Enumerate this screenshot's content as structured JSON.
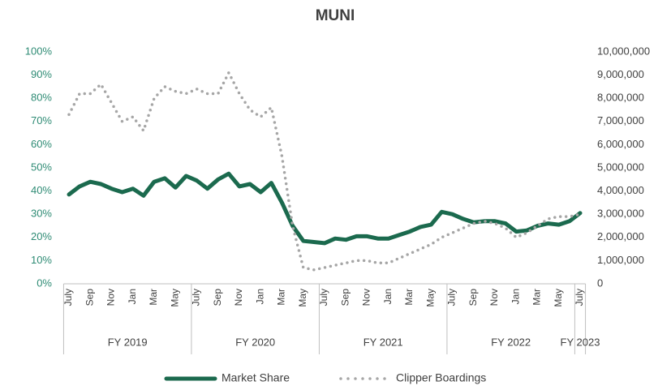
{
  "chart_data": {
    "type": "line",
    "title": "MUNI",
    "categories": [
      "July",
      null,
      "Sep",
      null,
      "Nov",
      null,
      "Jan",
      null,
      "Mar",
      null,
      "May",
      null,
      "July",
      null,
      "Sep",
      null,
      "Nov",
      null,
      "Jan",
      null,
      "Mar",
      null,
      "May",
      null,
      "July",
      null,
      "Sep",
      null,
      "Nov",
      null,
      "Jan",
      null,
      "Mar",
      null,
      "May",
      null,
      "July",
      null,
      "Sep",
      null,
      "Nov",
      null,
      "Jan",
      null,
      "Mar",
      null,
      "May",
      null,
      "July"
    ],
    "groups": [
      "FY 2019",
      "FY 2020",
      "FY 2021",
      "FY 2022",
      "FY 2023"
    ],
    "series": [
      {
        "name": "Market Share",
        "color": "#1b6a4e",
        "axis": "y",
        "values": [
          38.5,
          42,
          44,
          43,
          41,
          39.5,
          41,
          38,
          44,
          45.5,
          41.5,
          46.5,
          44.5,
          41,
          45,
          47.5,
          42,
          43,
          39.5,
          43.5,
          35,
          25,
          18.5,
          18,
          17.5,
          19.5,
          19,
          20.5,
          20.5,
          19.5,
          19.5,
          21,
          22.5,
          24.5,
          25.5,
          31,
          30,
          28,
          26.5,
          27,
          27,
          26,
          22.5,
          23,
          25,
          26,
          25.5,
          27,
          30.5
        ]
      },
      {
        "name": "Clipper Boardings",
        "color": "#a6a6a6",
        "axis": "y2",
        "values": [
          7300000,
          8200000,
          8200000,
          8600000,
          7800000,
          7000000,
          7200000,
          6600000,
          8000000,
          8500000,
          8300000,
          8200000,
          8400000,
          8200000,
          8200000,
          9100000,
          8200000,
          7500000,
          7200000,
          7600000,
          5500000,
          2500000,
          700000,
          600000,
          700000,
          800000,
          900000,
          1000000,
          1000000,
          900000,
          900000,
          1100000,
          1300000,
          1500000,
          1700000,
          2000000,
          2200000,
          2400000,
          2600000,
          2700000,
          2600000,
          2400000,
          2000000,
          2200000,
          2500000,
          2800000,
          2900000,
          2900000,
          3000000
        ]
      }
    ],
    "ylim": [
      0,
      100
    ],
    "yticks": [
      {
        "value": 0,
        "label": "0%"
      },
      {
        "value": 10,
        "label": "10%"
      },
      {
        "value": 20,
        "label": "20%"
      },
      {
        "value": 30,
        "label": "30%"
      },
      {
        "value": 40,
        "label": "40%"
      },
      {
        "value": 50,
        "label": "50%"
      },
      {
        "value": 60,
        "label": "60%"
      },
      {
        "value": 70,
        "label": "70%"
      },
      {
        "value": 80,
        "label": "80%"
      },
      {
        "value": 90,
        "label": "90%"
      },
      {
        "value": 100,
        "label": "100%"
      }
    ],
    "y2lim": [
      0,
      10000000
    ],
    "y2ticks": [
      0,
      {
        "value": 1000000,
        "label": "1,000,000"
      },
      {
        "value": 2000000,
        "label": "2,000,000"
      },
      {
        "value": 3000000,
        "label": "3,000,000"
      },
      {
        "value": 4000000,
        "label": "4,000,000"
      },
      {
        "value": 5000000,
        "label": "5,000,000"
      },
      {
        "value": 6000000,
        "label": "6,000,000"
      },
      {
        "value": 7000000,
        "label": "7,000,000"
      },
      {
        "value": 8000000,
        "label": "8,000,000"
      },
      {
        "value": 9000000,
        "label": "9,000,000"
      },
      {
        "value": 10000000,
        "label": "10,000,000"
      }
    ],
    "grid": false,
    "legend": "bottom"
  }
}
